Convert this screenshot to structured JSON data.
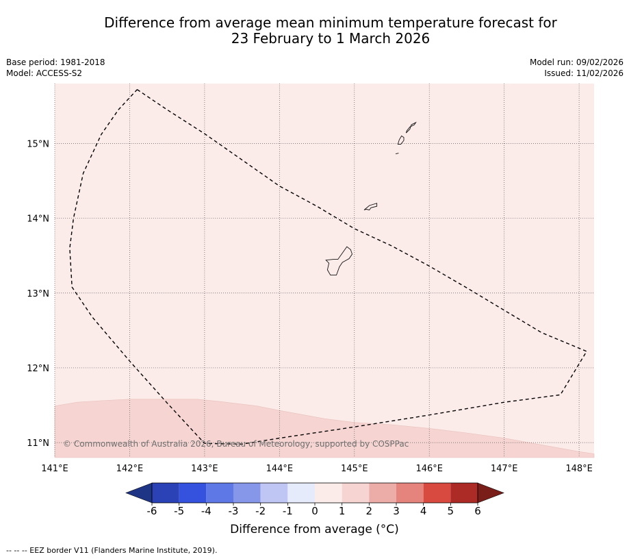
{
  "header": {
    "title_line1": "Difference from average mean minimum temperature forecast for",
    "title_line2": "23 February to 1 March 2026",
    "base_period": "Base period: 1981-2018",
    "model": "Model: ACCESS-S2",
    "model_run": "Model run: 09/02/2026",
    "issued": "Issued: 11/02/2026"
  },
  "map": {
    "lon_range": [
      141,
      148.2
    ],
    "lat_range": [
      10.8,
      15.8
    ],
    "lon_ticks": [
      141,
      142,
      143,
      144,
      145,
      146,
      147,
      148
    ],
    "lon_tick_labels": [
      "141°E",
      "142°E",
      "143°E",
      "144°E",
      "145°E",
      "146°E",
      "147°E",
      "148°E"
    ],
    "lat_ticks": [
      11,
      12,
      13,
      14,
      15
    ],
    "lat_tick_labels": [
      "11°N",
      "12°N",
      "13°N",
      "14°N",
      "15°N"
    ],
    "background_category": "0 to 1",
    "background_color": "#fbebe9",
    "warmer_area_category": "1 to 2",
    "warmer_area_color": "#f5d4d1",
    "copyright": "© Commonwealth of Australia 2026, Bureau of Meteorology, supported by COSPPac",
    "eez_border": [
      [
        142.1,
        15.72
      ],
      [
        142.5,
        15.45
      ],
      [
        143.0,
        15.13
      ],
      [
        143.5,
        14.78
      ],
      [
        144.0,
        14.43
      ],
      [
        144.5,
        14.16
      ],
      [
        145.0,
        13.86
      ],
      [
        145.5,
        13.63
      ],
      [
        146.0,
        13.36
      ],
      [
        146.5,
        13.07
      ],
      [
        147.0,
        12.77
      ],
      [
        147.5,
        12.47
      ],
      [
        148.1,
        12.22
      ],
      [
        147.75,
        11.64
      ],
      [
        147.0,
        11.54
      ],
      [
        146.0,
        11.37
      ],
      [
        145.0,
        11.21
      ],
      [
        144.0,
        11.06
      ],
      [
        143.5,
        10.98
      ],
      [
        143.0,
        10.99
      ],
      [
        142.5,
        11.53
      ],
      [
        142.0,
        12.09
      ],
      [
        141.5,
        12.68
      ],
      [
        141.23,
        13.08
      ],
      [
        141.2,
        13.6
      ],
      [
        141.25,
        14.0
      ],
      [
        141.38,
        14.6
      ],
      [
        141.62,
        15.12
      ],
      [
        141.85,
        15.45
      ],
      [
        142.1,
        15.72
      ]
    ],
    "warm_boundary": [
      [
        141.0,
        11.49
      ],
      [
        141.3,
        11.54
      ],
      [
        141.6,
        11.56
      ],
      [
        142.0,
        11.58
      ],
      [
        142.5,
        11.58
      ],
      [
        142.9,
        11.58
      ],
      [
        143.2,
        11.55
      ],
      [
        143.7,
        11.49
      ],
      [
        144.0,
        11.43
      ],
      [
        144.6,
        11.32
      ],
      [
        145.0,
        11.27
      ],
      [
        145.5,
        11.24
      ],
      [
        146.0,
        11.19
      ],
      [
        146.5,
        11.13
      ],
      [
        147.0,
        11.06
      ],
      [
        147.5,
        10.97
      ],
      [
        148.0,
        10.88
      ],
      [
        148.2,
        10.85
      ]
    ],
    "islands": [
      [
        [
          145.74,
          15.22
        ],
        [
          145.8,
          15.25
        ],
        [
          145.82,
          15.28
        ],
        [
          145.76,
          15.25
        ],
        [
          145.74,
          15.19
        ],
        [
          145.69,
          15.14
        ],
        [
          145.7,
          15.17
        ]
      ],
      [
        [
          145.63,
          15.1
        ],
        [
          145.6,
          15.05
        ],
        [
          145.58,
          14.99
        ],
        [
          145.62,
          14.99
        ],
        [
          145.66,
          15.04
        ],
        [
          145.66,
          15.08
        ]
      ],
      [
        [
          145.55,
          14.86
        ],
        [
          145.59,
          14.87
        ]
      ],
      [
        [
          145.13,
          14.11
        ],
        [
          145.2,
          14.17
        ],
        [
          145.3,
          14.2
        ],
        [
          145.3,
          14.16
        ],
        [
          145.22,
          14.14
        ],
        [
          145.2,
          14.11
        ],
        [
          145.16,
          14.12
        ]
      ],
      [
        [
          144.72,
          13.45
        ],
        [
          144.78,
          13.45
        ],
        [
          144.85,
          13.55
        ],
        [
          144.9,
          13.62
        ],
        [
          144.95,
          13.58
        ],
        [
          144.97,
          13.52
        ],
        [
          144.93,
          13.46
        ],
        [
          144.84,
          13.41
        ],
        [
          144.8,
          13.35
        ],
        [
          144.76,
          13.24
        ],
        [
          144.68,
          13.24
        ],
        [
          144.64,
          13.31
        ],
        [
          144.66,
          13.4
        ],
        [
          144.62,
          13.44
        ]
      ]
    ]
  },
  "colorbar": {
    "title": "Difference from average (°C)",
    "tick_labels": [
      "-6",
      "-5",
      "-4",
      "-3",
      "-2",
      "-1",
      "0",
      "1",
      "2",
      "3",
      "4",
      "5",
      "6"
    ],
    "under_color": "#1e3585",
    "over_color": "#7a1e1a",
    "colors": [
      "#2b41b6",
      "#3452de",
      "#5e78e6",
      "#8697e9",
      "#c0c6f4",
      "#e6ebfb",
      "#fbecea",
      "#f5d4d1",
      "#ecaca8",
      "#e5847d",
      "#d84a3f",
      "#ad2b26"
    ]
  },
  "footer": {
    "legend": "--  --  -- EEZ border V11 (Flanders Marine Institute, 2019)."
  }
}
